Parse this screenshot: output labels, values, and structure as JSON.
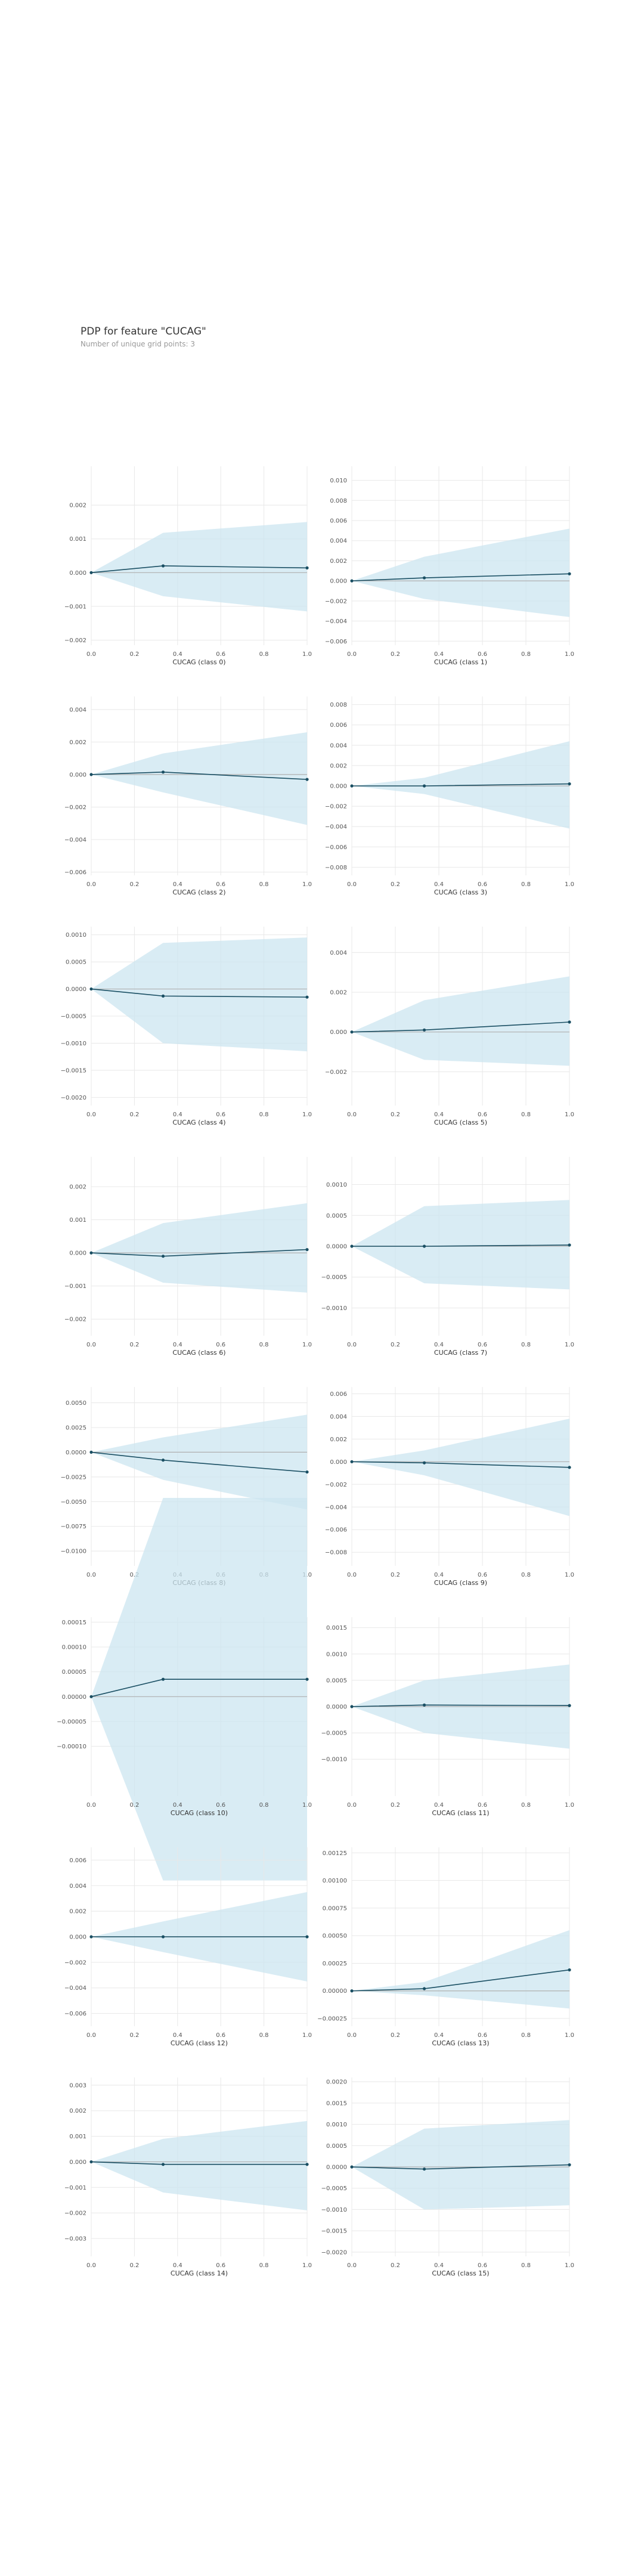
{
  "header": {
    "title": "PDP for feature \"CUCAG\"",
    "subtitle": "Number of unique grid points: 3"
  },
  "colors": {
    "band": "#cce6f0",
    "line": "#1a4f63",
    "zero_line": "#b0b0b0",
    "grid": "#e8e8e8",
    "tick_text": "#555555"
  },
  "chart_data": [
    {
      "type": "line",
      "xlabel": "CUCAG (class 0)",
      "x": [
        0,
        0.333,
        1
      ],
      "y": [
        0,
        0.0002,
        0.00014
      ],
      "upper": [
        0,
        0.00118,
        0.0015
      ],
      "lower": [
        0,
        -0.0007,
        -0.00115
      ],
      "ylim": [
        -0.00215,
        0.00315
      ],
      "yticks": [
        -0.002,
        -0.001,
        0,
        0.001,
        0.002
      ],
      "yticklabels": [
        "−0.002",
        "−0.001",
        "0.000",
        "0.001",
        "0.002"
      ]
    },
    {
      "type": "line",
      "xlabel": "CUCAG (class 1)",
      "x": [
        0,
        0.333,
        1
      ],
      "y": [
        0,
        0.0003,
        0.0007
      ],
      "upper": [
        0,
        0.0024,
        0.0052
      ],
      "lower": [
        0,
        -0.0018,
        -0.0036
      ],
      "ylim": [
        -0.0064,
        0.0114
      ],
      "yticks": [
        -0.006,
        -0.004,
        -0.002,
        0,
        0.002,
        0.004,
        0.006,
        0.008,
        0.01
      ],
      "yticklabels": [
        "−0.006",
        "−0.004",
        "−0.002",
        "0.000",
        "0.002",
        "0.004",
        "0.006",
        "0.008",
        "0.010"
      ]
    },
    {
      "type": "line",
      "xlabel": "CUCAG (class 2)",
      "x": [
        0,
        0.333,
        1
      ],
      "y": [
        0,
        0.00015,
        -0.0003
      ],
      "upper": [
        0,
        0.0013,
        0.0026
      ],
      "lower": [
        0,
        -0.0011,
        -0.0031
      ],
      "ylim": [
        -0.0062,
        0.0048
      ],
      "yticks": [
        -0.006,
        -0.004,
        -0.002,
        0,
        0.002,
        0.004
      ],
      "yticklabels": [
        "−0.006",
        "−0.004",
        "−0.002",
        "0.000",
        "0.002",
        "0.004"
      ]
    },
    {
      "type": "line",
      "xlabel": "CUCAG (class 3)",
      "x": [
        0,
        0.333,
        1
      ],
      "y": [
        0,
        0,
        0.0002
      ],
      "upper": [
        0,
        0.0008,
        0.0044
      ],
      "lower": [
        0,
        -0.0008,
        -0.0042
      ],
      "ylim": [
        -0.0088,
        0.0088
      ],
      "yticks": [
        -0.008,
        -0.006,
        -0.004,
        -0.002,
        0,
        0.002,
        0.004,
        0.006,
        0.008
      ],
      "yticklabels": [
        "−0.008",
        "−0.006",
        "−0.004",
        "−0.002",
        "0.000",
        "0.002",
        "0.004",
        "0.006",
        "0.008"
      ]
    },
    {
      "type": "line",
      "xlabel": "CUCAG (class 4)",
      "x": [
        0,
        0.333,
        1
      ],
      "y": [
        0,
        -0.00013,
        -0.00015
      ],
      "upper": [
        0,
        0.00085,
        0.00095
      ],
      "lower": [
        0,
        -0.001,
        -0.00115
      ],
      "ylim": [
        -0.00215,
        0.00115
      ],
      "yticks": [
        -0.002,
        -0.0015,
        -0.001,
        -0.0005,
        0,
        0.0005,
        0.001
      ],
      "yticklabels": [
        "−0.0020",
        "−0.0015",
        "−0.0010",
        "−0.0005",
        "0.0000",
        "0.0005",
        "0.0010"
      ]
    },
    {
      "type": "line",
      "xlabel": "CUCAG (class 5)",
      "x": [
        0,
        0.333,
        1
      ],
      "y": [
        0,
        0.0001,
        0.0005
      ],
      "upper": [
        0,
        0.0016,
        0.0028
      ],
      "lower": [
        0,
        -0.0014,
        -0.0017
      ],
      "ylim": [
        -0.0037,
        0.0053
      ],
      "yticks": [
        -0.002,
        0,
        0.002,
        0.004
      ],
      "yticklabels": [
        "−0.002",
        "0.000",
        "0.002",
        "0.004"
      ]
    },
    {
      "type": "line",
      "xlabel": "CUCAG (class 6)",
      "x": [
        0,
        0.333,
        1
      ],
      "y": [
        0,
        -0.0001,
        0.0001
      ],
      "upper": [
        0,
        0.0009,
        0.0015
      ],
      "lower": [
        0,
        -0.0009,
        -0.0012
      ],
      "ylim": [
        -0.0025,
        0.0029
      ],
      "yticks": [
        -0.002,
        -0.001,
        0,
        0.001,
        0.002
      ],
      "yticklabels": [
        "−0.002",
        "−0.001",
        "0.000",
        "0.001",
        "0.002"
      ]
    },
    {
      "type": "line",
      "xlabel": "CUCAG (class 7)",
      "x": [
        0,
        0.333,
        1
      ],
      "y": [
        0,
        0,
        2e-05
      ],
      "upper": [
        0,
        0.00065,
        0.00075
      ],
      "lower": [
        0,
        -0.0006,
        -0.0007
      ],
      "ylim": [
        -0.00145,
        0.00145
      ],
      "yticks": [
        -0.001,
        -0.0005,
        0,
        0.0005,
        0.001
      ],
      "yticklabels": [
        "−0.0010",
        "−0.0005",
        "0.0000",
        "0.0005",
        "0.0010"
      ]
    },
    {
      "type": "line",
      "xlabel": "CUCAG (class 8)",
      "x": [
        0,
        0.333,
        1
      ],
      "y": [
        0,
        -0.0008,
        -0.002
      ],
      "upper": [
        0,
        0.0015,
        0.0038
      ],
      "lower": [
        0,
        -0.0028,
        -0.0058
      ],
      "ylim": [
        -0.0115,
        0.0066
      ],
      "yticks": [
        -0.01,
        -0.0075,
        -0.005,
        -0.0025,
        0,
        0.0025,
        0.005
      ],
      "yticklabels": [
        "−0.0100",
        "−0.0075",
        "−0.0050",
        "−0.0025",
        "0.0000",
        "0.0025",
        "0.0050"
      ]
    },
    {
      "type": "line",
      "xlabel": "CUCAG (class 9)",
      "x": [
        0,
        0.333,
        1
      ],
      "y": [
        0,
        -0.0001,
        -0.0005
      ],
      "upper": [
        0,
        0.001,
        0.0038
      ],
      "lower": [
        0,
        -0.0012,
        -0.0048
      ],
      "ylim": [
        -0.0092,
        0.0066
      ],
      "yticks": [
        -0.008,
        -0.006,
        -0.004,
        -0.002,
        0,
        0.002,
        0.004,
        0.006
      ],
      "yticklabels": [
        "−0.008",
        "−0.006",
        "−0.004",
        "−0.002",
        "0.000",
        "0.002",
        "0.004",
        "0.006"
      ]
    },
    {
      "type": "line",
      "xlabel": "CUCAG (class 10)",
      "x": [
        0,
        0.333,
        1
      ],
      "y": [
        0,
        3.5e-05,
        3.5e-05
      ],
      "upper": [
        0,
        0.0004,
        0.0004
      ],
      "lower": [
        0,
        -0.00037,
        -0.00037
      ],
      "ylim": [
        -0.0002,
        0.00016
      ],
      "yticks": [
        -0.0001,
        -5e-05,
        0,
        5e-05,
        0.0001,
        0.00015
      ],
      "yticklabels": [
        "−0.00010",
        "−0.00005",
        "0.00000",
        "0.00005",
        "0.00010",
        "0.00015"
      ]
    },
    {
      "type": "line",
      "xlabel": "CUCAG (class 11)",
      "x": [
        0,
        0.333,
        1
      ],
      "y": [
        0,
        3e-05,
        2e-05
      ],
      "upper": [
        0,
        0.0005,
        0.0008
      ],
      "lower": [
        0,
        -0.0005,
        -0.0008
      ],
      "ylim": [
        -0.0017,
        0.0017
      ],
      "yticks": [
        -0.001,
        -0.0005,
        0,
        0.0005,
        0.001,
        0.0015
      ],
      "yticklabels": [
        "−0.0010",
        "−0.0005",
        "0.0000",
        "0.0005",
        "0.0010",
        "0.0015"
      ]
    },
    {
      "type": "line",
      "xlabel": "CUCAG (class 12)",
      "x": [
        0,
        0.333,
        1
      ],
      "y": [
        0,
        0,
        0
      ],
      "upper": [
        0,
        0.0012,
        0.0035
      ],
      "lower": [
        0,
        -0.0012,
        -0.0035
      ],
      "ylim": [
        -0.007,
        0.007
      ],
      "yticks": [
        -0.006,
        -0.004,
        -0.002,
        0,
        0.002,
        0.004,
        0.006
      ],
      "yticklabels": [
        "−0.006",
        "−0.004",
        "−0.002",
        "0.000",
        "0.002",
        "0.004",
        "0.006"
      ]
    },
    {
      "type": "line",
      "xlabel": "CUCAG (class 13)",
      "x": [
        0,
        0.333,
        1
      ],
      "y": [
        0,
        2e-05,
        0.00019
      ],
      "upper": [
        0,
        8e-05,
        0.00055
      ],
      "lower": [
        0,
        -4e-05,
        -0.00016
      ],
      "ylim": [
        -0.00032,
        0.0013
      ],
      "yticks": [
        -0.00025,
        0,
        0.00025,
        0.0005,
        0.00075,
        0.001,
        0.00125
      ],
      "yticklabels": [
        "−0.00025",
        "0.00000",
        "0.00025",
        "0.00050",
        "0.00075",
        "0.00100",
        "0.00125"
      ]
    },
    {
      "type": "line",
      "xlabel": "CUCAG (class 14)",
      "x": [
        0,
        0.333,
        1
      ],
      "y": [
        0,
        -0.0001,
        -0.0001
      ],
      "upper": [
        0,
        0.0009,
        0.0016
      ],
      "lower": [
        0,
        -0.0012,
        -0.0019
      ],
      "ylim": [
        -0.0037,
        0.0033
      ],
      "yticks": [
        -0.003,
        -0.002,
        -0.001,
        0,
        0.001,
        0.002,
        0.003
      ],
      "yticklabels": [
        "−0.003",
        "−0.002",
        "−0.001",
        "0.000",
        "0.001",
        "0.002",
        "0.003"
      ]
    },
    {
      "type": "line",
      "xlabel": "CUCAG (class 15)",
      "x": [
        0,
        0.333,
        1
      ],
      "y": [
        0,
        -5e-05,
        5e-05
      ],
      "upper": [
        0,
        0.0009,
        0.0011
      ],
      "lower": [
        0,
        -0.001,
        -0.0009
      ],
      "ylim": [
        -0.0021,
        0.0021
      ],
      "yticks": [
        -0.002,
        -0.0015,
        -0.001,
        -0.0005,
        0,
        0.0005,
        0.001,
        0.0015,
        0.002
      ],
      "yticklabels": [
        "−0.0020",
        "−0.0015",
        "−0.0010",
        "−0.0005",
        "0.0000",
        "0.0005",
        "0.0010",
        "0.0015",
        "0.0020"
      ]
    }
  ]
}
